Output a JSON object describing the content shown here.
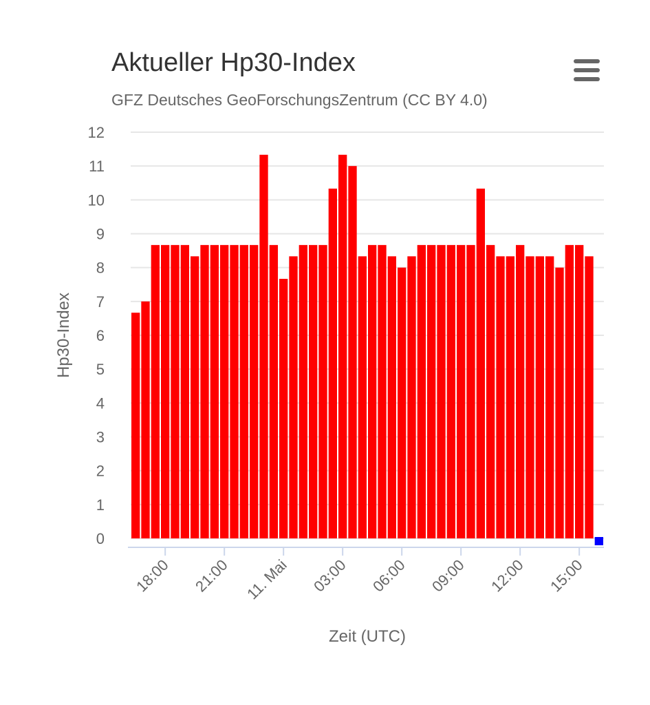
{
  "header": {
    "title": "Aktueller Hp30-Index",
    "subtitle": "GFZ Deutsches GeoForschungsZentrum (CC BY 4.0)",
    "menu_icon": "hamburger-menu-icon"
  },
  "colors": {
    "bar": "#ff0000",
    "last_bar": "#0000ff",
    "grid": "#e6e6e6",
    "axis_text": "#666666"
  },
  "chart_data": {
    "type": "bar",
    "title": "Aktueller Hp30-Index",
    "subtitle": "GFZ Deutsches GeoForschungsZentrum (CC BY 4.0)",
    "xlabel": "Zeit (UTC)",
    "ylabel": "Hp30-Index",
    "ylim": [
      0,
      12
    ],
    "yticks": [
      "0",
      "1",
      "2",
      "3",
      "4",
      "5",
      "6",
      "7",
      "8",
      "9",
      "10",
      "11",
      "12"
    ],
    "xticks": [
      {
        "label": "18:00",
        "index": 3.5
      },
      {
        "label": "21:00",
        "index": 9.5
      },
      {
        "label": "11. Mai",
        "index": 15.5
      },
      {
        "label": "03:00",
        "index": 21.5
      },
      {
        "label": "06:00",
        "index": 27.5
      },
      {
        "label": "09:00",
        "index": 33.5
      },
      {
        "label": "12:00",
        "index": 39.5
      },
      {
        "label": "15:00",
        "index": 45.5
      }
    ],
    "grid": true,
    "legend": "none",
    "values": [
      6.667,
      7,
      8.667,
      8.667,
      8.667,
      8.667,
      8.333,
      8.667,
      8.667,
      8.667,
      8.667,
      8.667,
      8.667,
      11.333,
      8.667,
      7.667,
      8.333,
      8.667,
      8.667,
      8.667,
      10.333,
      11.333,
      11,
      8.333,
      8.667,
      8.667,
      8.333,
      8,
      8.333,
      8.667,
      8.667,
      8.667,
      8.667,
      8.667,
      8.667,
      10.333,
      8.667,
      8.333,
      8.333,
      8.667,
      8.333,
      8.333,
      8.333,
      8,
      8.667,
      8.667,
      8.333,
      0
    ]
  }
}
